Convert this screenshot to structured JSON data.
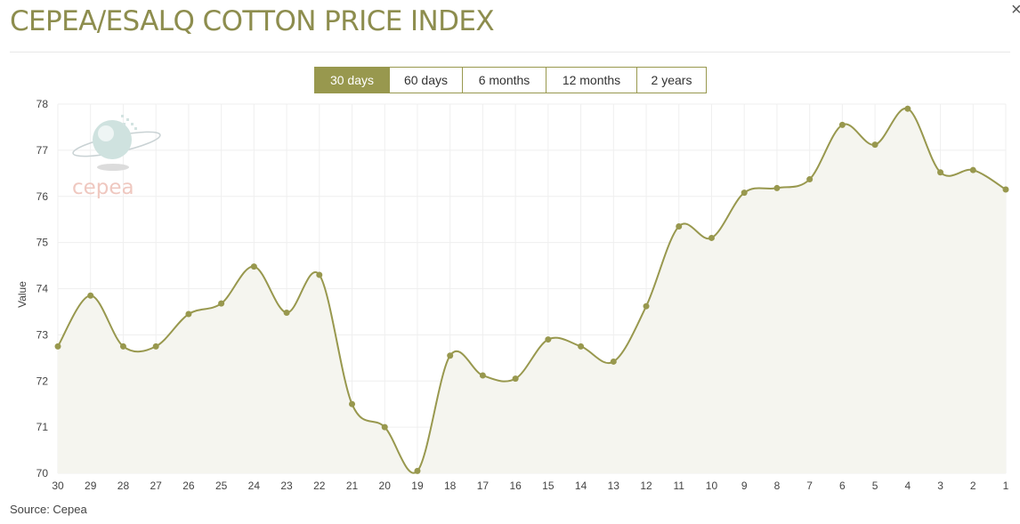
{
  "header": {
    "title": "CEPEA/ESALQ COTTON PRICE INDEX",
    "close_label": "×"
  },
  "range_tabs": [
    {
      "label": "30 days",
      "active": true
    },
    {
      "label": "60 days",
      "active": false
    },
    {
      "label": "6 months",
      "active": false
    },
    {
      "label": "12 months",
      "active": false
    },
    {
      "label": "2 years",
      "active": false
    }
  ],
  "watermark": {
    "text": "cepea"
  },
  "footer": {
    "source": "Source: Cepea"
  },
  "colors": {
    "accent": "#98984e",
    "line": "#98984e",
    "fill": "#f5f5ef",
    "grid": "#efefef"
  },
  "chart_data": {
    "type": "area",
    "title": "",
    "xlabel": "",
    "ylabel": "Value",
    "ylim": [
      70,
      78
    ],
    "yticks": [
      70,
      71,
      72,
      73,
      74,
      75,
      76,
      77,
      78
    ],
    "grid": true,
    "smooth": true,
    "categories": [
      "30",
      "29",
      "28",
      "27",
      "26",
      "25",
      "24",
      "23",
      "22",
      "21",
      "20",
      "19",
      "18",
      "17",
      "16",
      "15",
      "14",
      "13",
      "12",
      "11",
      "10",
      "9",
      "8",
      "7",
      "6",
      "5",
      "4",
      "3",
      "2",
      "1"
    ],
    "series": [
      {
        "values": [
          72.75,
          73.85,
          72.75,
          72.75,
          73.45,
          73.68,
          74.48,
          73.48,
          74.3,
          71.5,
          71.0,
          70.05,
          72.55,
          72.12,
          72.05,
          72.9,
          72.75,
          72.42,
          73.62,
          75.35,
          75.1,
          76.08,
          76.18,
          76.37,
          77.55,
          77.12,
          77.9,
          76.52,
          76.57,
          76.15
        ]
      }
    ]
  }
}
